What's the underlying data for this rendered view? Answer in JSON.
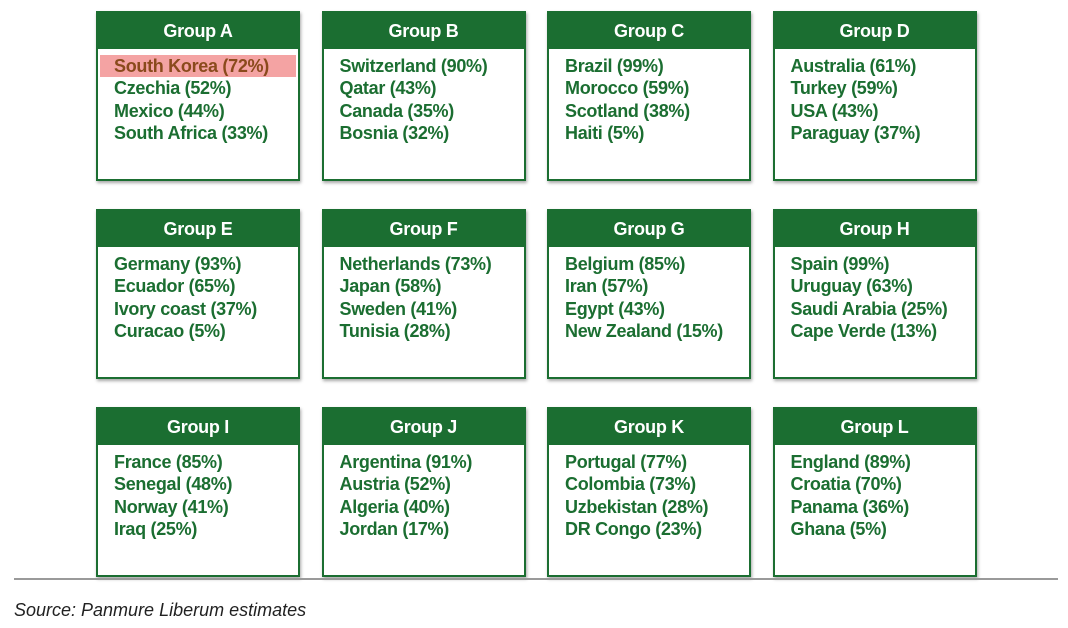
{
  "groups": [
    {
      "name": "Group A",
      "teams": [
        "South Korea (72%)",
        "Czechia (52%)",
        "Mexico (44%)",
        "South Africa (33%)"
      ],
      "highlight_index": 0
    },
    {
      "name": "Group B",
      "teams": [
        "Switzerland (90%)",
        "Qatar (43%)",
        "Canada (35%)",
        "Bosnia (32%)"
      ]
    },
    {
      "name": "Group C",
      "teams": [
        "Brazil (99%)",
        "Morocco (59%)",
        "Scotland (38%)",
        "Haiti (5%)"
      ]
    },
    {
      "name": "Group D",
      "teams": [
        "Australia (61%)",
        "Turkey (59%)",
        "USA (43%)",
        "Paraguay (37%)"
      ]
    },
    {
      "name": "Group E",
      "teams": [
        "Germany (93%)",
        "Ecuador (65%)",
        "Ivory coast (37%)",
        "Curacao (5%)"
      ]
    },
    {
      "name": "Group F",
      "teams": [
        "Netherlands (73%)",
        "Japan (58%)",
        "Sweden (41%)",
        "Tunisia (28%)"
      ]
    },
    {
      "name": "Group G",
      "teams": [
        "Belgium (85%)",
        "Iran (57%)",
        "Egypt (43%)",
        "New Zealand (15%)"
      ]
    },
    {
      "name": "Group H",
      "teams": [
        "Spain (99%)",
        "Uruguay (63%)",
        "Saudi Arabia (25%)",
        "Cape Verde (13%)"
      ]
    },
    {
      "name": "Group I",
      "teams": [
        "France (85%)",
        "Senegal (48%)",
        "Norway (41%)",
        "Iraq (25%)"
      ]
    },
    {
      "name": "Group J",
      "teams": [
        "Argentina (91%)",
        "Austria (52%)",
        "Algeria (40%)",
        "Jordan (17%)"
      ]
    },
    {
      "name": "Group K",
      "teams": [
        "Portugal (77%)",
        "Colombia (73%)",
        "Uzbekistan (28%)",
        "DR Congo (23%)"
      ]
    },
    {
      "name": "Group L",
      "teams": [
        "England (89%)",
        "Croatia (70%)",
        "Panama (36%)",
        "Ghana (5%)"
      ]
    }
  ],
  "source": "Source: Panmure Liberum estimates",
  "colors": {
    "header": "#1b6e31",
    "text": "#1b6e31",
    "highlight": "#f4a3a3"
  }
}
